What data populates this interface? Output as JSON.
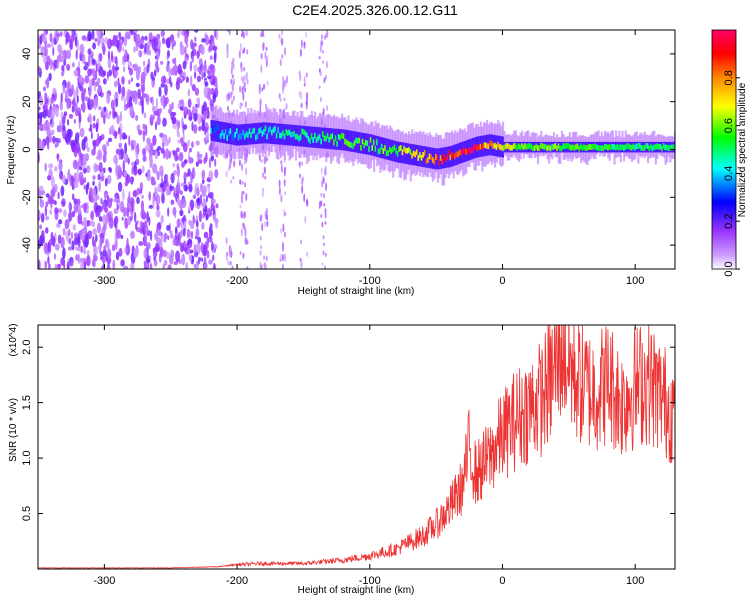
{
  "title": "C2E4.2025.326.00.12.G11",
  "chart_data": [
    {
      "type": "heatmap",
      "xlabel": "Height of straight line (km)",
      "ylabel": "Frequency (Hz)",
      "xlim": [
        -350,
        130
      ],
      "ylim": [
        -50,
        50
      ],
      "xticks": [
        -300,
        -200,
        -100,
        0,
        100
      ],
      "yticks": [
        -40,
        -20,
        0,
        20,
        40
      ],
      "colorbar": {
        "label": "Normalized spectral amplitude",
        "range": [
          0,
          1
        ],
        "ticks": [
          "0.0",
          "0.2",
          "0.4",
          "0.6",
          "0.8"
        ],
        "colors": [
          "#ffffff",
          "#9933ff",
          "#0000ff",
          "#00ffff",
          "#00ff00",
          "#ffff00",
          "#ff8800",
          "#ff0000",
          "#ff0066"
        ]
      },
      "ridge": {
        "x": [
          -220,
          -200,
          -180,
          -160,
          -140,
          -120,
          -100,
          -80,
          -60,
          -50,
          -40,
          -30,
          -20,
          -10,
          0,
          20,
          50,
          100,
          130
        ],
        "y": [
          8,
          6,
          7,
          6,
          5,
          4,
          2,
          -1,
          -3,
          -4,
          -3,
          -1,
          1,
          2,
          1,
          1,
          1,
          1,
          1
        ],
        "amplitude": [
          0.35,
          0.4,
          0.45,
          0.45,
          0.5,
          0.55,
          0.55,
          0.6,
          0.7,
          0.85,
          0.9,
          0.95,
          0.9,
          0.75,
          0.65,
          0.6,
          0.55,
          0.5,
          0.5
        ]
      },
      "noise_region_x": [
        -350,
        -215
      ]
    },
    {
      "type": "line",
      "xlabel": "Height of straight line (km)",
      "ylabel": "SNR (10 * v/v)",
      "y_multiplier": "(x10^4)",
      "xlim": [
        -350,
        130
      ],
      "ylim": [
        0,
        2.2
      ],
      "xticks": [
        -300,
        -200,
        -100,
        0,
        100
      ],
      "yticks": [
        "0.5",
        "1.0",
        "1.5",
        "2.0"
      ],
      "color": "#ee3333",
      "series": [
        {
          "x": [
            -350,
            -300,
            -250,
            -215,
            -200,
            -180,
            -150,
            -120,
            -100,
            -80,
            -60,
            -50,
            -40,
            -30,
            -25,
            -20,
            -10,
            0,
            10,
            20,
            30,
            40,
            45,
            50,
            60,
            70,
            80,
            90,
            100,
            110,
            120,
            130
          ],
          "y": [
            0.01,
            0.01,
            0.01,
            0.02,
            0.04,
            0.05,
            0.05,
            0.08,
            0.12,
            0.18,
            0.3,
            0.4,
            0.55,
            0.75,
            1.1,
            0.85,
            1.0,
            1.2,
            1.35,
            1.45,
            1.55,
            1.8,
            2.05,
            1.85,
            1.65,
            1.6,
            1.7,
            1.5,
            1.65,
            1.7,
            1.55,
            1.4
          ]
        }
      ]
    }
  ]
}
